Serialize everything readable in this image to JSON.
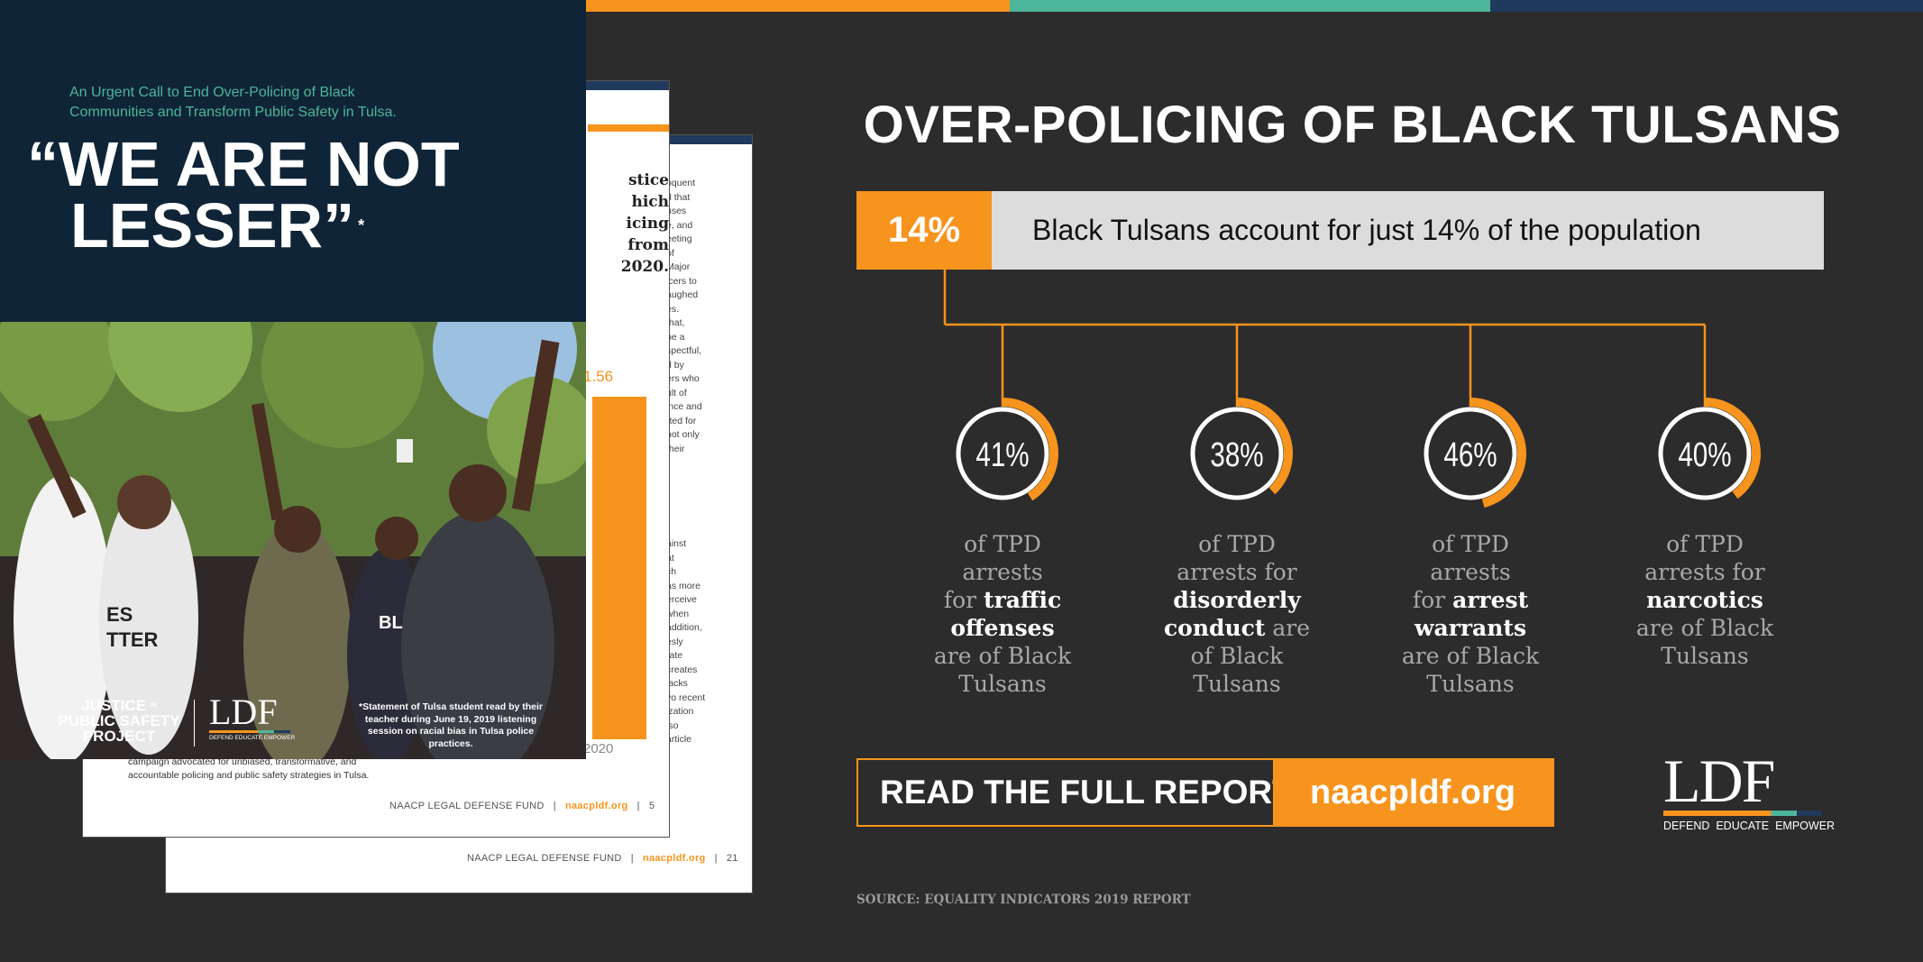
{
  "colors": {
    "orange": "#f7941d",
    "teal": "#4db69a",
    "navy": "#1f3a5c",
    "dark_bg": "#2c2c2c",
    "cover_bg": "#0f2437"
  },
  "back_page": {
    "footer_org": "NAACP LEGAL DEFENSE FUND",
    "footer_url": "naacpldf.org",
    "footer_page": "21",
    "text_fragments": [
      "oquent",
      "d that",
      "uses",
      "e, and",
      "eeting",
      "of",
      "Major",
      "icers to",
      "aughed",
      "es.",
      "that,",
      "be a",
      "spectful,",
      "d by",
      "ers who",
      "ult of",
      "ince and",
      "rted for",
      "not only",
      "their",
      "ainst",
      "at",
      "ch",
      "as more",
      "erceive",
      "when",
      "addition,",
      "esly",
      "rate",
      "creates",
      "lacks",
      "vo recent",
      "ization",
      "lso",
      "article"
    ]
  },
  "mid_page": {
    "footer_org": "NAACP LEGAL DEFENSE FUND",
    "footer_url": "naacpldf.org",
    "footer_page": "5",
    "heading_fragments": [
      "stice",
      "hich",
      "icing",
      "from",
      "2020."
    ],
    "number_fragment": "1.56",
    "year_fragment": "2020",
    "body_lines": [
      "campaign advocated for unbiased, transformative, and",
      "accountable policing and public safety strategies in Tulsa."
    ]
  },
  "cover": {
    "subtitle": "An Urgent Call to End Over-Policing of Black Communities and Transform Public Safety in Tulsa.",
    "title_line1": "“WE ARE NOT",
    "title_line2": "LESSER”",
    "asterisk": "*",
    "logo_justice": "JUSTICE",
    "logo_in": "IN",
    "logo_line2": "PUBLIC SAFETY",
    "logo_line3": "PROJECT",
    "ldf_logo": "LDF",
    "ldf_tagline": "DEFEND EDUCATE EMPOWER",
    "photo_shirt_text_1": "ES",
    "photo_shirt_text_2": "TTER",
    "photo_sign_text": "BL",
    "caption": "*Statement of Tulsa student read by their teacher during June 19, 2019 listening session on racial bias in Tulsa police practices."
  },
  "infographic": {
    "title": "OVER-POLICING OF BLACK TULSANS",
    "population_pct": "14%",
    "population_text": "Black Tulsans account for just 14% of the population",
    "stats": [
      {
        "pct_label": "41%",
        "pct": 41,
        "line1": "of TPD",
        "line2": "arrests",
        "pre": "for ",
        "bold1": "traffic",
        "bold2": "offenses",
        "post1": "",
        "post2": "are of Black",
        "post3": "Tulsans"
      },
      {
        "pct_label": "38%",
        "pct": 38,
        "line1": "of TPD",
        "line2": "arrests for",
        "pre": "",
        "bold1": "disorderly",
        "bold2": "conduct",
        "post1": " are",
        "post2": "of Black",
        "post3": "Tulsans"
      },
      {
        "pct_label": "46%",
        "pct": 46,
        "line1": "of TPD",
        "line2": "arrests",
        "pre": "for ",
        "bold1": "arrest",
        "bold2": "warrants",
        "post1": "",
        "post2": "are of Black",
        "post3": "Tulsans"
      },
      {
        "pct_label": "40%",
        "pct": 40,
        "line1": "of TPD",
        "line2": "arrests for",
        "pre": "",
        "bold1": "narcotics",
        "bold2": "",
        "post1": "",
        "post2": "are of Black",
        "post3": "Tulsans"
      }
    ],
    "cta_label": "READ THE FULL REPORT",
    "cta_url": "naacpldf.org",
    "ldf_logo": "LDF",
    "ldf_tagline": "DEFEND  EDUCATE  EMPOWER",
    "source": "SOURCE: EQUALITY INDICATORS 2019 REPORT"
  }
}
